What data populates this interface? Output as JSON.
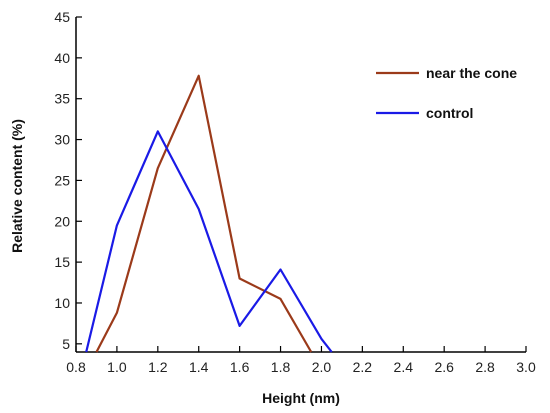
{
  "chart_data": {
    "type": "line",
    "xlabel": "Height (nm)",
    "ylabel": "Relative content (%)",
    "xlim": [
      0.8,
      3.0
    ],
    "ylim": [
      4,
      45
    ],
    "x_ticks": [
      "0.8",
      "1.0",
      "1.2",
      "1.4",
      "1.6",
      "1.8",
      "2.0",
      "2.2",
      "2.4",
      "2.6",
      "2.8",
      "3.0"
    ],
    "y_ticks": [
      "5",
      "10",
      "15",
      "20",
      "25",
      "30",
      "35",
      "40",
      "45"
    ],
    "grid": false,
    "legend_position": "top-right",
    "series": [
      {
        "name": "near the cone",
        "color": "#9b3a1a",
        "x": [
          0.9,
          1.0,
          1.2,
          1.4,
          1.6,
          1.8,
          1.95
        ],
        "y": [
          4,
          8.8,
          26.5,
          37.8,
          13.0,
          10.5,
          4
        ]
      },
      {
        "name": "control",
        "color": "#1a1ae6",
        "x": [
          0.85,
          1.0,
          1.2,
          1.4,
          1.6,
          1.8,
          2.0,
          2.05
        ],
        "y": [
          4,
          19.5,
          31.0,
          21.5,
          7.2,
          14.1,
          5.6,
          4
        ]
      }
    ]
  }
}
